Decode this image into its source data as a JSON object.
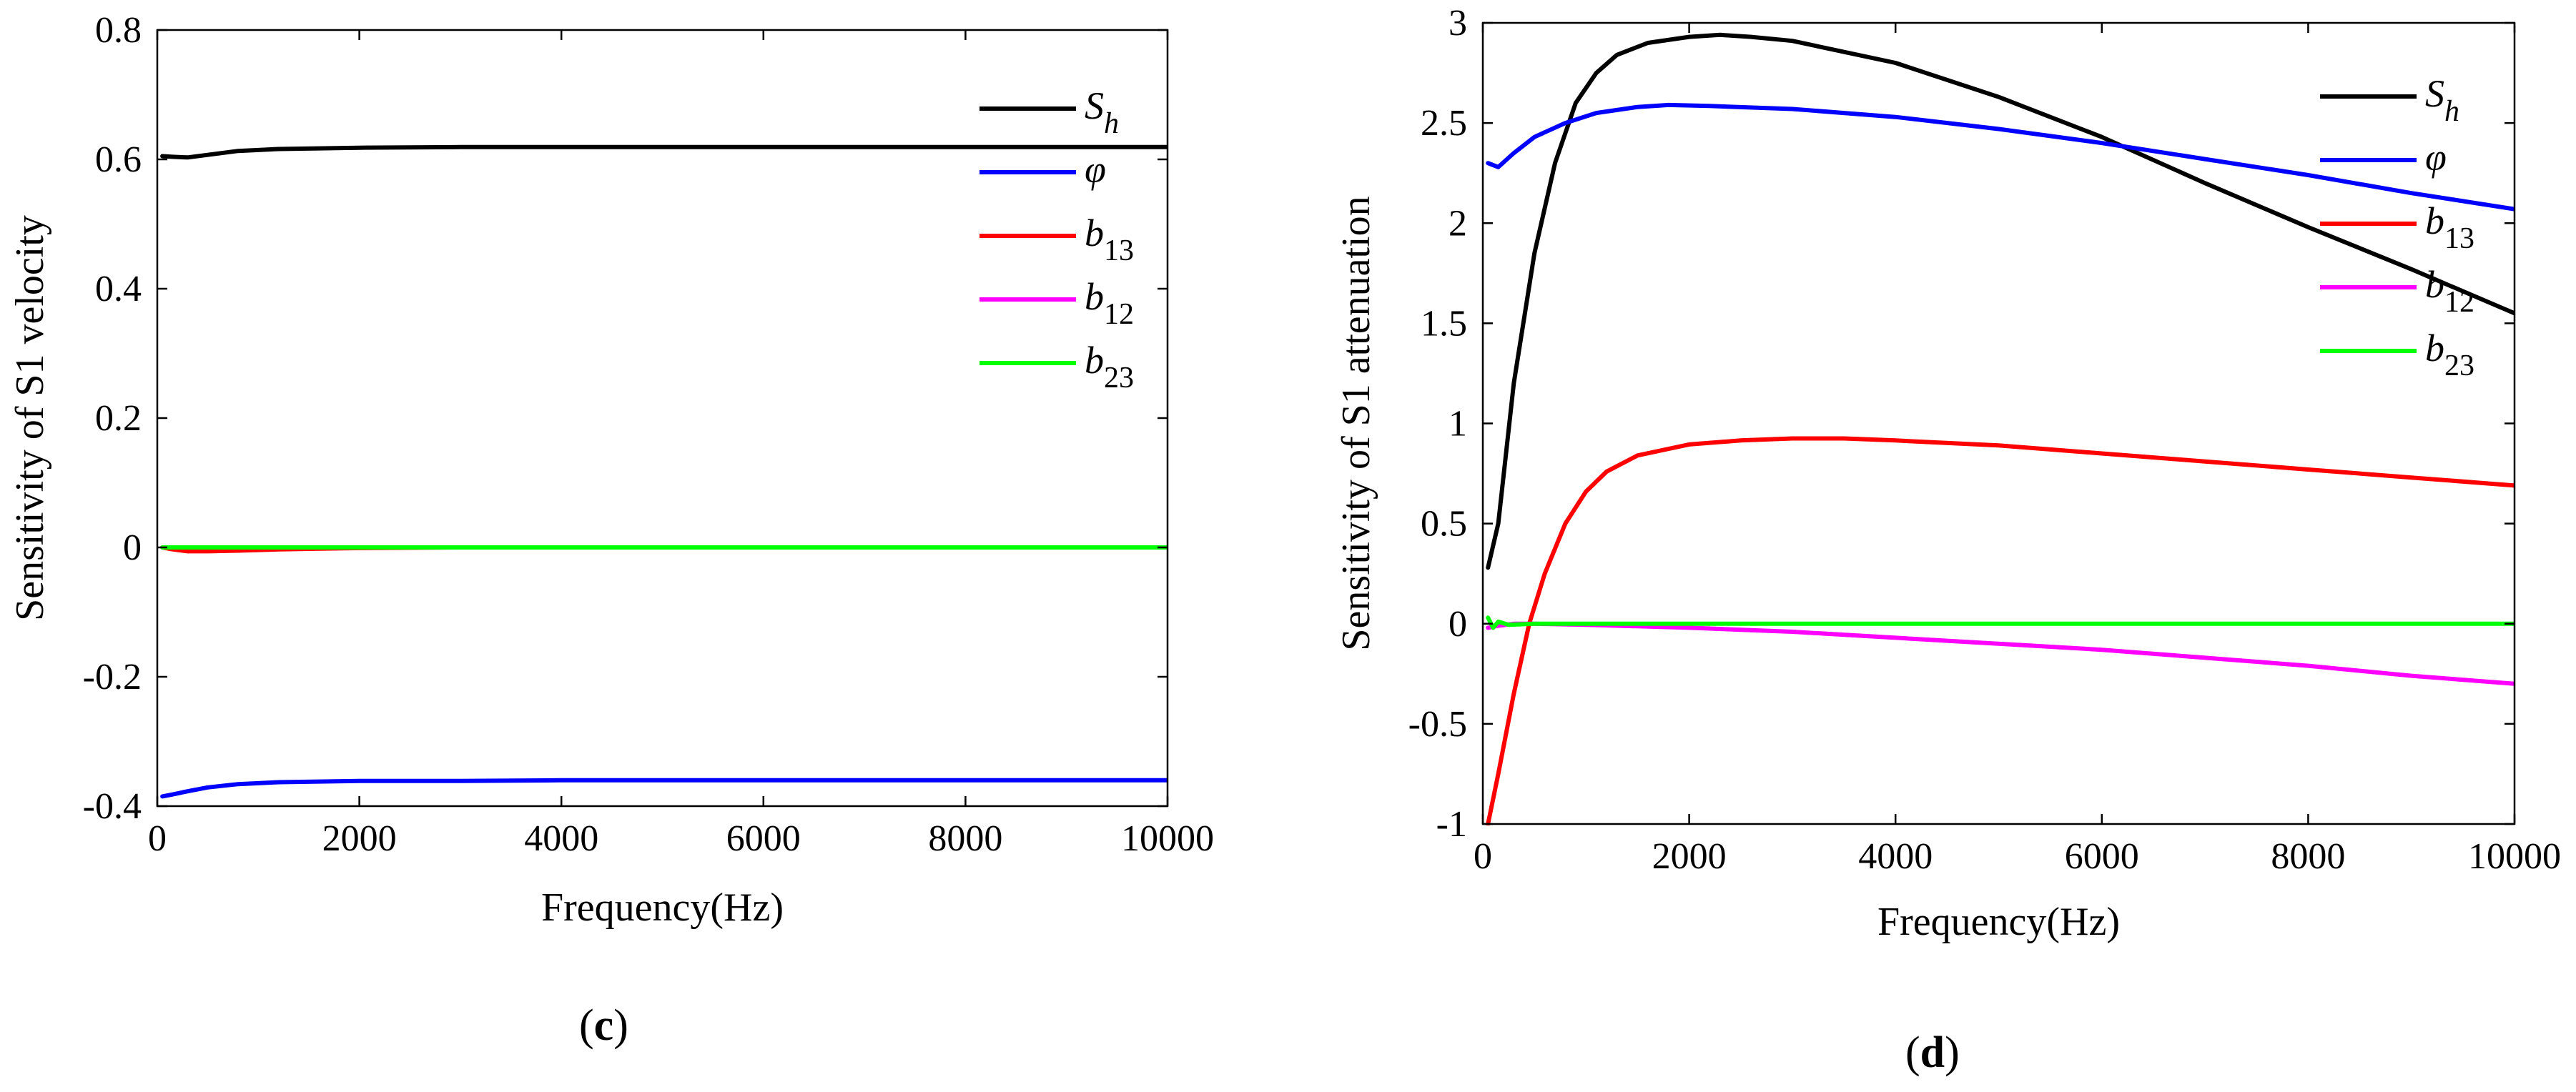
{
  "chart_data": [
    {
      "type": "line",
      "panel": "c",
      "xlabel": "Frequency(Hz)",
      "ylabel": "Sensitivity of  S1 velocity",
      "xlim": [
        0,
        10000
      ],
      "ylim": [
        -0.4,
        0.8
      ],
      "xticks": [
        0,
        2000,
        4000,
        6000,
        8000,
        10000
      ],
      "xtick_labels": [
        "0",
        "2000",
        "4000",
        "6000",
        "8000",
        "10000"
      ],
      "yticks": [
        -0.4,
        -0.2,
        0,
        0.2,
        0.4,
        0.6,
        0.8
      ],
      "ytick_labels": [
        "-0.4",
        "-0.2",
        "0",
        "0.2",
        "0.4",
        "0.6",
        "0.8"
      ],
      "legend_position": "top-right",
      "series": [
        {
          "name": "S",
          "sub": "h",
          "color": "#000000",
          "x": [
            50,
            150,
            300,
            500,
            800,
            1200,
            1600,
            2000,
            3000,
            4000,
            6000,
            8000,
            10000
          ],
          "y": [
            0.605,
            0.604,
            0.603,
            0.607,
            0.613,
            0.616,
            0.617,
            0.618,
            0.619,
            0.619,
            0.619,
            0.619,
            0.619
          ]
        },
        {
          "name": "φ",
          "sub": "",
          "color": "#0000ff",
          "x": [
            50,
            150,
            300,
            500,
            800,
            1200,
            1600,
            2000,
            3000,
            4000,
            6000,
            8000,
            10000
          ],
          "y": [
            -0.385,
            -0.382,
            -0.377,
            -0.371,
            -0.366,
            -0.363,
            -0.362,
            -0.361,
            -0.361,
            -0.36,
            -0.36,
            -0.36,
            -0.36
          ]
        },
        {
          "name": "b",
          "sub": "13",
          "color": "#ff0000",
          "x": [
            50,
            150,
            300,
            500,
            800,
            1200,
            1600,
            2000,
            3000,
            6000,
            10000
          ],
          "y": [
            0,
            -0.003,
            -0.006,
            -0.006,
            -0.005,
            -0.003,
            -0.002,
            -0.001,
            0,
            0,
            0
          ]
        },
        {
          "name": "b",
          "sub": "12",
          "color": "#ff00ff",
          "x": [
            50,
            10000
          ],
          "y": [
            0,
            0
          ]
        },
        {
          "name": "b",
          "sub": "23",
          "color": "#00ff00",
          "x": [
            50,
            10000
          ],
          "y": [
            0,
            0
          ]
        }
      ]
    },
    {
      "type": "line",
      "panel": "d",
      "xlabel": "Frequency(Hz)",
      "ylabel": "Sensitivity of  S1 attenuation",
      "xlim": [
        0,
        10000
      ],
      "ylim": [
        -1,
        3
      ],
      "xticks": [
        0,
        2000,
        4000,
        6000,
        8000,
        10000
      ],
      "xtick_labels": [
        "0",
        "2000",
        "4000",
        "6000",
        "8000",
        "10000"
      ],
      "yticks": [
        -1,
        -0.5,
        0,
        0.5,
        1,
        1.5,
        2,
        2.5,
        3
      ],
      "ytick_labels": [
        "-1",
        "-0.5",
        "0",
        "0.5",
        "1",
        "1.5",
        "2",
        "2.5",
        "3"
      ],
      "legend_position": "top-right",
      "series": [
        {
          "name": "S",
          "sub": "h",
          "color": "#000000",
          "x": [
            50,
            150,
            300,
            500,
            700,
            900,
            1100,
            1300,
            1600,
            2000,
            2300,
            2600,
            3000,
            4000,
            5000,
            6000,
            7000,
            8000,
            9000,
            10000
          ],
          "y": [
            0.28,
            0.5,
            1.2,
            1.85,
            2.3,
            2.6,
            2.75,
            2.84,
            2.9,
            2.93,
            2.94,
            2.93,
            2.91,
            2.8,
            2.63,
            2.43,
            2.2,
            1.98,
            1.77,
            1.55
          ]
        },
        {
          "name": "φ",
          "sub": "",
          "color": "#0000ff",
          "x": [
            50,
            150,
            300,
            500,
            800,
            1100,
            1500,
            1800,
            2200,
            3000,
            4000,
            5000,
            6000,
            7000,
            8000,
            9000,
            10000
          ],
          "y": [
            2.3,
            2.28,
            2.35,
            2.43,
            2.5,
            2.55,
            2.58,
            2.59,
            2.585,
            2.57,
            2.53,
            2.47,
            2.4,
            2.32,
            2.24,
            2.15,
            2.07
          ]
        },
        {
          "name": "b",
          "sub": "13",
          "color": "#ff0000",
          "x": [
            50,
            150,
            300,
            450,
            600,
            800,
            1000,
            1200,
            1500,
            2000,
            2500,
            3000,
            3500,
            4000,
            5000,
            6000,
            7000,
            8000,
            9000,
            10000
          ],
          "y": [
            -1.0,
            -0.75,
            -0.35,
            0.0,
            0.25,
            0.5,
            0.66,
            0.76,
            0.84,
            0.895,
            0.915,
            0.925,
            0.925,
            0.915,
            0.89,
            0.85,
            0.81,
            0.77,
            0.73,
            0.69
          ]
        },
        {
          "name": "b",
          "sub": "12",
          "color": "#ff00ff",
          "x": [
            50,
            150,
            300,
            500,
            1000,
            2000,
            3000,
            4000,
            5000,
            6000,
            7000,
            8000,
            9000,
            10000
          ],
          "y": [
            -0.02,
            -0.01,
            0,
            0,
            -0.005,
            -0.02,
            -0.04,
            -0.07,
            -0.1,
            -0.13,
            -0.17,
            -0.21,
            -0.26,
            -0.3
          ]
        },
        {
          "name": "b",
          "sub": "23",
          "color": "#00ff00",
          "x": [
            50,
            100,
            150,
            250,
            500,
            1000,
            10000
          ],
          "y": [
            0.03,
            -0.02,
            0.01,
            -0.005,
            0,
            0,
            0
          ]
        }
      ]
    }
  ],
  "panel_labels": [
    "(c)",
    "(d)"
  ]
}
